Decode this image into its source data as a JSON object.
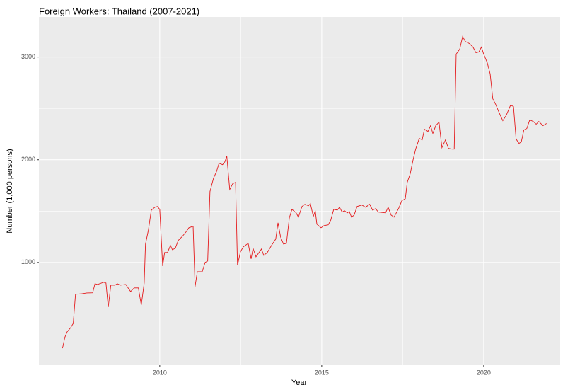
{
  "chart_data": {
    "type": "line",
    "title": "Foreign Workers: Thailand (2007-2021)",
    "x_label": "Year",
    "y_label": "Number (1,000 persons)",
    "x": [
      2007.0,
      2007.07,
      2007.14,
      2007.25,
      2007.33,
      2007.4,
      2007.58,
      2007.75,
      2007.93,
      2008.0,
      2008.08,
      2008.27,
      2008.34,
      2008.41,
      2008.49,
      2008.62,
      2008.69,
      2008.78,
      2008.95,
      2009.1,
      2009.21,
      2009.34,
      2009.43,
      2009.52,
      2009.56,
      2009.65,
      2009.74,
      2009.85,
      2009.93,
      2010.0,
      2010.09,
      2010.15,
      2010.24,
      2010.33,
      2010.39,
      2010.48,
      2010.57,
      2010.7,
      2010.81,
      2010.9,
      2011.03,
      2011.09,
      2011.16,
      2011.31,
      2011.4,
      2011.48,
      2011.55,
      2011.66,
      2011.75,
      2011.83,
      2011.94,
      2012.01,
      2012.07,
      2012.16,
      2012.25,
      2012.34,
      2012.4,
      2012.49,
      2012.58,
      2012.73,
      2012.82,
      2012.88,
      2012.97,
      2013.14,
      2013.21,
      2013.32,
      2013.45,
      2013.58,
      2013.65,
      2013.73,
      2013.82,
      2013.91,
      2014.0,
      2014.08,
      2014.21,
      2014.28,
      2014.39,
      2014.48,
      2014.59,
      2014.65,
      2014.74,
      2014.8,
      2014.85,
      2014.98,
      2015.07,
      2015.2,
      2015.28,
      2015.37,
      2015.48,
      2015.55,
      2015.63,
      2015.7,
      2015.79,
      2015.85,
      2015.92,
      2016.0,
      2016.09,
      2016.24,
      2016.35,
      2016.48,
      2016.57,
      2016.66,
      2016.75,
      2016.97,
      2017.05,
      2017.14,
      2017.23,
      2017.29,
      2017.38,
      2017.47,
      2017.58,
      2017.64,
      2017.73,
      2017.82,
      2017.9,
      2018.01,
      2018.1,
      2018.17,
      2018.28,
      2018.36,
      2018.43,
      2018.52,
      2018.62,
      2018.71,
      2018.82,
      2018.91,
      2019.02,
      2019.09,
      2019.15,
      2019.26,
      2019.35,
      2019.43,
      2019.56,
      2019.67,
      2019.76,
      2019.85,
      2019.93,
      2020.0,
      2020.11,
      2020.2,
      2020.28,
      2020.37,
      2020.48,
      2020.59,
      2020.7,
      2020.83,
      2020.92,
      2021.0,
      2021.09,
      2021.16,
      2021.24,
      2021.33,
      2021.42,
      2021.53,
      2021.62,
      2021.7,
      2021.83,
      2021.94
    ],
    "series": [
      {
        "color": "#e41a1c",
        "values": [
          165,
          270,
          324,
          365,
          407,
          690,
          695,
          703,
          705,
          793,
          786,
          807,
          800,
          565,
          779,
          779,
          793,
          779,
          786,
          717,
          752,
          752,
          586,
          800,
          1179,
          1317,
          1510,
          1538,
          1545,
          1517,
          965,
          1097,
          1097,
          1166,
          1124,
          1138,
          1214,
          1255,
          1297,
          1338,
          1352,
          765,
          910,
          910,
          1000,
          1014,
          1690,
          1821,
          1883,
          1966,
          1952,
          1980,
          2035,
          1710,
          1766,
          1780,
          972,
          1104,
          1152,
          1186,
          1035,
          1138,
          1055,
          1131,
          1069,
          1097,
          1166,
          1228,
          1386,
          1248,
          1179,
          1186,
          1435,
          1517,
          1483,
          1441,
          1545,
          1566,
          1552,
          1573,
          1448,
          1504,
          1373,
          1338,
          1359,
          1366,
          1414,
          1517,
          1510,
          1538,
          1490,
          1504,
          1483,
          1497,
          1441,
          1462,
          1545,
          1559,
          1538,
          1566,
          1510,
          1524,
          1490,
          1483,
          1538,
          1462,
          1441,
          1476,
          1531,
          1600,
          1621,
          1780,
          1862,
          2000,
          2104,
          2208,
          2194,
          2297,
          2276,
          2332,
          2256,
          2332,
          2366,
          2118,
          2194,
          2111,
          2104,
          2104,
          3028,
          3077,
          3201,
          3152,
          3131,
          3097,
          3042,
          3049,
          3097,
          3028,
          2945,
          2835,
          2594,
          2539,
          2456,
          2380,
          2435,
          2532,
          2518,
          2201,
          2159,
          2173,
          2290,
          2304,
          2387,
          2373,
          2346,
          2373,
          2332,
          2353
        ]
      }
    ],
    "xlim": [
      2006.27,
      2022.36
    ],
    "ylim": [
      0,
      3390
    ],
    "xticks": [
      2010,
      2015,
      2020
    ],
    "yticks": [
      1000,
      2000,
      3000
    ],
    "grid": true
  }
}
